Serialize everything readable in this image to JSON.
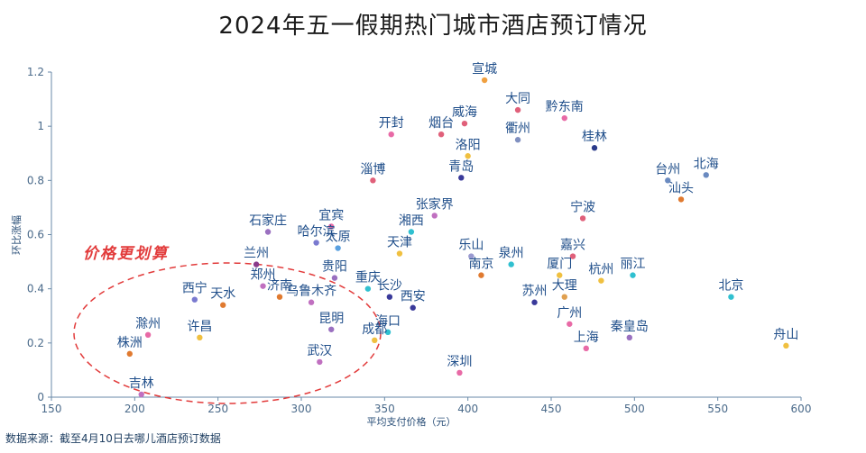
{
  "chart_data": {
    "type": "scatter",
    "title": "2024年五一假期热门城市酒店预订情况",
    "xlabel": "平均支付价格（元）",
    "ylabel": "环比涨幅",
    "xlim": [
      150,
      600
    ],
    "ylim": [
      0,
      1.2
    ],
    "xticks": [
      150,
      200,
      250,
      300,
      350,
      400,
      450,
      500,
      550,
      600
    ],
    "yticks": [
      0,
      0.2,
      0.4,
      0.6,
      0.8,
      1,
      1.2
    ],
    "ytick_labels": [
      "0",
      "0.2",
      "0.4",
      "0.6",
      "0.8",
      "1",
      "1.2"
    ],
    "annotation": "价格更划算",
    "source": "数据来源：截至4月10日去哪儿酒店预订数据",
    "points": [
      {
        "name": "宣城",
        "x": 410,
        "y": 1.17,
        "color": "#f0a040"
      },
      {
        "name": "大同",
        "x": 430,
        "y": 1.06,
        "color": "#e0607a"
      },
      {
        "name": "黔东南",
        "x": 458,
        "y": 1.03,
        "color": "#e86aa6"
      },
      {
        "name": "开封",
        "x": 354,
        "y": 0.97,
        "color": "#e86aa6"
      },
      {
        "name": "烟台",
        "x": 384,
        "y": 0.97,
        "color": "#e0607a"
      },
      {
        "name": "威海",
        "x": 398,
        "y": 1.01,
        "color": "#e0607a"
      },
      {
        "name": "衢州",
        "x": 430,
        "y": 0.95,
        "color": "#8090c0"
      },
      {
        "name": "桂林",
        "x": 476,
        "y": 0.92,
        "color": "#2a3a8a"
      },
      {
        "name": "洛阳",
        "x": 400,
        "y": 0.89,
        "color": "#f0c040"
      },
      {
        "name": "青岛",
        "x": 396,
        "y": 0.81,
        "color": "#3a3a9a"
      },
      {
        "name": "淄博",
        "x": 343,
        "y": 0.8,
        "color": "#e0607a"
      },
      {
        "name": "台州",
        "x": 520,
        "y": 0.8,
        "color": "#6a8ac0"
      },
      {
        "name": "北海",
        "x": 543,
        "y": 0.82,
        "color": "#6a8ac0"
      },
      {
        "name": "汕头",
        "x": 528,
        "y": 0.73,
        "color": "#e07a30"
      },
      {
        "name": "张家界",
        "x": 380,
        "y": 0.67,
        "color": "#c070c0"
      },
      {
        "name": "宁波",
        "x": 469,
        "y": 0.66,
        "color": "#e0607a"
      },
      {
        "name": "宜宾",
        "x": 318,
        "y": 0.63,
        "color": "#e86aa6"
      },
      {
        "name": "石家庄",
        "x": 280,
        "y": 0.61,
        "color": "#9a70c0"
      },
      {
        "name": "湘西",
        "x": 366,
        "y": 0.61,
        "color": "#30c0d0"
      },
      {
        "name": "哈尔滨",
        "x": 309,
        "y": 0.57,
        "color": "#7a7ad0"
      },
      {
        "name": "太原",
        "x": 322,
        "y": 0.55,
        "color": "#5aa0e0"
      },
      {
        "name": "天津",
        "x": 359,
        "y": 0.53,
        "color": "#f0c040"
      },
      {
        "name": "嘉兴",
        "x": 463,
        "y": 0.52,
        "color": "#e0607a"
      },
      {
        "name": "乐山",
        "x": 402,
        "y": 0.52,
        "color": "#9a9ad0"
      },
      {
        "name": "泉州",
        "x": 426,
        "y": 0.49,
        "color": "#30c0d0"
      },
      {
        "name": "兰州",
        "x": 273,
        "y": 0.49,
        "color": "#8a3a8a"
      },
      {
        "name": "南京",
        "x": 408,
        "y": 0.45,
        "color": "#e07a30"
      },
      {
        "name": "厦门",
        "x": 455,
        "y": 0.45,
        "color": "#f0c040"
      },
      {
        "name": "杭州",
        "x": 480,
        "y": 0.43,
        "color": "#f0c040"
      },
      {
        "name": "丽江",
        "x": 499,
        "y": 0.45,
        "color": "#30c0d0"
      },
      {
        "name": "贵阳",
        "x": 320,
        "y": 0.44,
        "color": "#9a70c0"
      },
      {
        "name": "郑州",
        "x": 277,
        "y": 0.41,
        "color": "#c070c0"
      },
      {
        "name": "重庆",
        "x": 340,
        "y": 0.4,
        "color": "#30c0d0"
      },
      {
        "name": "北京",
        "x": 558,
        "y": 0.37,
        "color": "#30c0d0"
      },
      {
        "name": "济南",
        "x": 287,
        "y": 0.37,
        "color": "#e07a30"
      },
      {
        "name": "长沙",
        "x": 353,
        "y": 0.37,
        "color": "#3a3a9a"
      },
      {
        "name": "大理",
        "x": 458,
        "y": 0.37,
        "color": "#e0a050"
      },
      {
        "name": "西宁",
        "x": 236,
        "y": 0.36,
        "color": "#7a7ad0"
      },
      {
        "name": "乌鲁木齐",
        "x": 306,
        "y": 0.35,
        "color": "#c070c0"
      },
      {
        "name": "苏州",
        "x": 440,
        "y": 0.35,
        "color": "#3a3a9a"
      },
      {
        "name": "天水",
        "x": 253,
        "y": 0.34,
        "color": "#e07a30"
      },
      {
        "name": "西安",
        "x": 367,
        "y": 0.33,
        "color": "#3a3a9a"
      },
      {
        "name": "广州",
        "x": 461,
        "y": 0.27,
        "color": "#e86aa6"
      },
      {
        "name": "海口",
        "x": 352,
        "y": 0.24,
        "color": "#30c0d0"
      },
      {
        "name": "昆明",
        "x": 318,
        "y": 0.25,
        "color": "#9a70c0"
      },
      {
        "name": "秦皇岛",
        "x": 497,
        "y": 0.22,
        "color": "#9a70c0"
      },
      {
        "name": "成都",
        "x": 344,
        "y": 0.21,
        "color": "#f0c040"
      },
      {
        "name": "滁州",
        "x": 208,
        "y": 0.23,
        "color": "#e86aa6"
      },
      {
        "name": "许昌",
        "x": 239,
        "y": 0.22,
        "color": "#f0c040"
      },
      {
        "name": "舟山",
        "x": 591,
        "y": 0.19,
        "color": "#f0c040"
      },
      {
        "name": "上海",
        "x": 471,
        "y": 0.18,
        "color": "#e86aa6"
      },
      {
        "name": "株洲",
        "x": 197,
        "y": 0.16,
        "color": "#e07a30"
      },
      {
        "name": "武汉",
        "x": 311,
        "y": 0.13,
        "color": "#c070c0"
      },
      {
        "name": "深圳",
        "x": 395,
        "y": 0.09,
        "color": "#e86aa6"
      },
      {
        "name": "吉林",
        "x": 204,
        "y": 0.01,
        "color": "#c070c0"
      }
    ]
  }
}
